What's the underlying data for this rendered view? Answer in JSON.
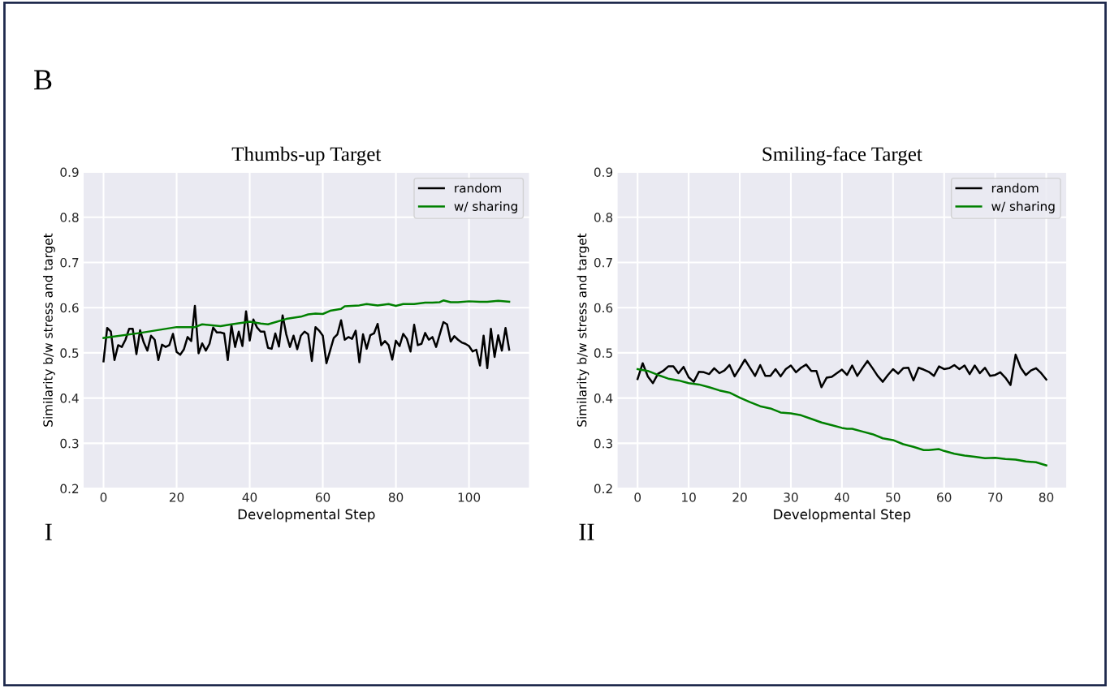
{
  "chart_data": [
    {
      "type": "line",
      "title": "Thumbs-up Target",
      "xlabel": "Developmental Step",
      "ylabel": "Similarity b/w stress and target",
      "annotations": [
        "B",
        "I"
      ],
      "xlim": [
        -5.55,
        116.55
      ],
      "xticks": [
        0,
        20,
        40,
        60,
        80,
        100
      ],
      "ylim": [
        0.2,
        0.9
      ],
      "yticks": [
        0.2,
        0.3,
        0.4,
        0.5,
        0.6,
        0.7,
        0.8,
        0.9
      ],
      "grid": true,
      "legend": "top right",
      "marker": "none",
      "line_style": "solid",
      "series": [
        {
          "name": "random",
          "color": "#000000",
          "x": [
            0,
            1,
            2,
            3,
            4,
            5,
            6,
            7,
            8,
            9,
            10,
            11,
            12,
            13,
            14,
            15,
            16,
            17,
            18,
            19,
            20,
            21,
            22,
            23,
            24,
            25,
            26,
            27,
            28,
            29,
            30,
            31,
            32,
            33,
            34,
            35,
            36,
            37,
            38,
            39,
            40,
            41,
            42,
            43,
            44,
            45,
            46,
            47,
            48,
            49,
            50,
            51,
            52,
            53,
            54,
            55,
            56,
            57,
            58,
            59,
            60,
            61,
            62,
            63,
            64,
            65,
            66,
            67,
            68,
            69,
            70,
            71,
            72,
            73,
            74,
            75,
            76,
            77,
            78,
            79,
            80,
            81,
            82,
            83,
            84,
            85,
            86,
            87,
            88,
            89,
            90,
            91,
            92,
            93,
            94,
            95,
            96,
            97,
            98,
            99,
            100,
            101,
            102,
            103,
            104,
            105,
            106,
            107,
            108,
            109,
            110,
            111
          ],
          "values": [
            0.481,
            0.555,
            0.547,
            0.484,
            0.517,
            0.513,
            0.529,
            0.553,
            0.553,
            0.497,
            0.55,
            0.523,
            0.505,
            0.538,
            0.529,
            0.484,
            0.518,
            0.513,
            0.517,
            0.542,
            0.502,
            0.496,
            0.508,
            0.535,
            0.526,
            0.604,
            0.499,
            0.521,
            0.505,
            0.52,
            0.556,
            0.545,
            0.545,
            0.543,
            0.484,
            0.561,
            0.513,
            0.547,
            0.515,
            0.592,
            0.527,
            0.574,
            0.556,
            0.547,
            0.547,
            0.511,
            0.509,
            0.543,
            0.514,
            0.583,
            0.541,
            0.513,
            0.538,
            0.508,
            0.538,
            0.547,
            0.541,
            0.482,
            0.557,
            0.549,
            0.538,
            0.477,
            0.505,
            0.533,
            0.541,
            0.572,
            0.529,
            0.535,
            0.531,
            0.549,
            0.479,
            0.541,
            0.509,
            0.539,
            0.543,
            0.564,
            0.517,
            0.526,
            0.517,
            0.485,
            0.527,
            0.515,
            0.542,
            0.531,
            0.503,
            0.562,
            0.517,
            0.52,
            0.544,
            0.529,
            0.535,
            0.513,
            0.541,
            0.568,
            0.563,
            0.525,
            0.537,
            0.529,
            0.523,
            0.52,
            0.515,
            0.503,
            0.507,
            0.472,
            0.538,
            0.466,
            0.553,
            0.491,
            0.539,
            0.505,
            0.555,
            0.507
          ]
        },
        {
          "name": "w/ sharing",
          "color": "#008000",
          "x": [
            0,
            10,
            20,
            25,
            27,
            32,
            35,
            40,
            43,
            45,
            50,
            54,
            56,
            58,
            60,
            62,
            65,
            66,
            70,
            72,
            75,
            78,
            80,
            82,
            85,
            88,
            90,
            92,
            93,
            95,
            97,
            100,
            103,
            105,
            108,
            111
          ],
          "values": [
            0.533,
            0.544,
            0.557,
            0.557,
            0.563,
            0.559,
            0.563,
            0.569,
            0.565,
            0.563,
            0.575,
            0.58,
            0.585,
            0.587,
            0.586,
            0.593,
            0.597,
            0.603,
            0.605,
            0.608,
            0.605,
            0.608,
            0.604,
            0.608,
            0.608,
            0.611,
            0.611,
            0.612,
            0.616,
            0.612,
            0.612,
            0.614,
            0.613,
            0.613,
            0.615,
            0.613
          ]
        }
      ]
    },
    {
      "type": "line",
      "title": "Smiling-face Target",
      "xlabel": "Developmental Step",
      "ylabel": "Similarity b/w stress and target",
      "annotations": [
        "II"
      ],
      "xlim": [
        -4,
        84
      ],
      "xticks": [
        0,
        10,
        20,
        30,
        40,
        50,
        60,
        70,
        80
      ],
      "ylim": [
        0.2,
        0.9
      ],
      "yticks": [
        0.2,
        0.3,
        0.4,
        0.5,
        0.6,
        0.7,
        0.8,
        0.9
      ],
      "grid": true,
      "legend": "top right",
      "marker": "none",
      "line_style": "solid",
      "series": [
        {
          "name": "random",
          "color": "#000000",
          "x": [
            0,
            1,
            2,
            3,
            4,
            5,
            6,
            7,
            8,
            9,
            10,
            11,
            12,
            13,
            14,
            15,
            16,
            17,
            18,
            19,
            20,
            21,
            22,
            23,
            24,
            25,
            26,
            27,
            28,
            29,
            30,
            31,
            32,
            33,
            34,
            35,
            36,
            37,
            38,
            39,
            40,
            41,
            42,
            43,
            44,
            45,
            46,
            47,
            48,
            49,
            50,
            51,
            52,
            53,
            54,
            55,
            56,
            57,
            58,
            59,
            60,
            61,
            62,
            63,
            64,
            65,
            66,
            67,
            68,
            69,
            70,
            71,
            72,
            73,
            74,
            75,
            76,
            77,
            78,
            79,
            80
          ],
          "values": [
            0.442,
            0.477,
            0.448,
            0.433,
            0.454,
            0.46,
            0.47,
            0.47,
            0.455,
            0.469,
            0.446,
            0.436,
            0.458,
            0.457,
            0.453,
            0.466,
            0.455,
            0.461,
            0.473,
            0.448,
            0.466,
            0.485,
            0.467,
            0.449,
            0.473,
            0.449,
            0.449,
            0.464,
            0.448,
            0.464,
            0.472,
            0.457,
            0.467,
            0.474,
            0.46,
            0.46,
            0.424,
            0.445,
            0.447,
            0.455,
            0.463,
            0.451,
            0.472,
            0.449,
            0.466,
            0.482,
            0.466,
            0.449,
            0.436,
            0.451,
            0.464,
            0.454,
            0.466,
            0.467,
            0.439,
            0.467,
            0.463,
            0.458,
            0.449,
            0.47,
            0.464,
            0.466,
            0.473,
            0.464,
            0.472,
            0.453,
            0.472,
            0.455,
            0.467,
            0.449,
            0.451,
            0.457,
            0.445,
            0.429,
            0.496,
            0.467,
            0.451,
            0.461,
            0.466,
            0.455,
            0.441
          ]
        },
        {
          "name": "w/ sharing",
          "color": "#008000",
          "x": [
            0,
            2,
            4,
            6,
            8,
            10,
            12,
            14,
            16,
            18,
            20,
            22,
            24,
            26,
            28,
            30,
            32,
            34,
            36,
            38,
            40,
            41,
            42,
            44,
            46,
            48,
            50,
            52,
            54,
            56,
            57,
            59,
            60,
            62,
            64,
            66,
            68,
            70,
            72,
            74,
            76,
            78,
            80
          ],
          "values": [
            0.464,
            0.46,
            0.451,
            0.443,
            0.439,
            0.433,
            0.43,
            0.424,
            0.417,
            0.412,
            0.401,
            0.391,
            0.382,
            0.377,
            0.368,
            0.366,
            0.362,
            0.354,
            0.346,
            0.34,
            0.334,
            0.332,
            0.332,
            0.326,
            0.32,
            0.311,
            0.307,
            0.298,
            0.292,
            0.285,
            0.285,
            0.287,
            0.283,
            0.277,
            0.273,
            0.27,
            0.267,
            0.268,
            0.265,
            0.264,
            0.26,
            0.258,
            0.251
          ]
        }
      ]
    }
  ]
}
